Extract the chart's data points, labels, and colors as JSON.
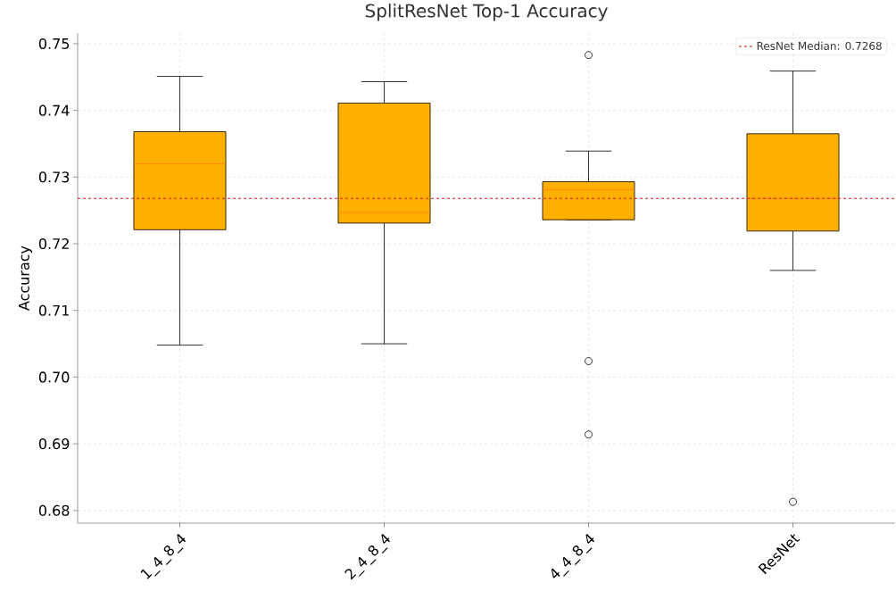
{
  "chart_data": {
    "type": "box",
    "title": "SplitResNet Top-1 Accuracy",
    "ylabel": "Accuracy",
    "categories": [
      "1_4_8_4",
      "2_4_8_4",
      "4_4_8_4",
      "ResNet"
    ],
    "boxes": [
      {
        "low": 0.7048,
        "q1": 0.7221,
        "median": 0.732,
        "q3": 0.7368,
        "high": 0.7451
      },
      {
        "low": 0.705,
        "q1": 0.7231,
        "median": 0.7247,
        "q3": 0.7411,
        "high": 0.7443
      },
      {
        "low": 0.7236,
        "q1": 0.7236,
        "median": 0.7281,
        "q3": 0.7293,
        "high": 0.7339,
        "outliers": [
          0.7483,
          0.7024,
          0.6914
        ]
      },
      {
        "low": 0.716,
        "q1": 0.7219,
        "median": 0.7268,
        "q3": 0.7365,
        "high": 0.7459,
        "outliers": [
          0.6813
        ]
      }
    ],
    "color": "#ffb000",
    "ylim": [
      0.6781,
      0.7516
    ],
    "yticks": [
      {
        "value": 0.68,
        "label": "0.68"
      },
      {
        "value": 0.69,
        "label": "0.69"
      },
      {
        "value": 0.7,
        "label": "0.70"
      },
      {
        "value": 0.71,
        "label": "0.71"
      },
      {
        "value": 0.72,
        "label": "0.72"
      },
      {
        "value": 0.73,
        "label": "0.73"
      },
      {
        "value": 0.74,
        "label": "0.74"
      },
      {
        "value": 0.75,
        "label": "0.75"
      }
    ],
    "ref_lines": [
      {
        "axis": "y",
        "value": 0.7268,
        "label": "ResNet Median: 0.7268",
        "color": "#ee1111",
        "line_style": "dashed"
      }
    ],
    "grid": true,
    "legend": "top right"
  }
}
